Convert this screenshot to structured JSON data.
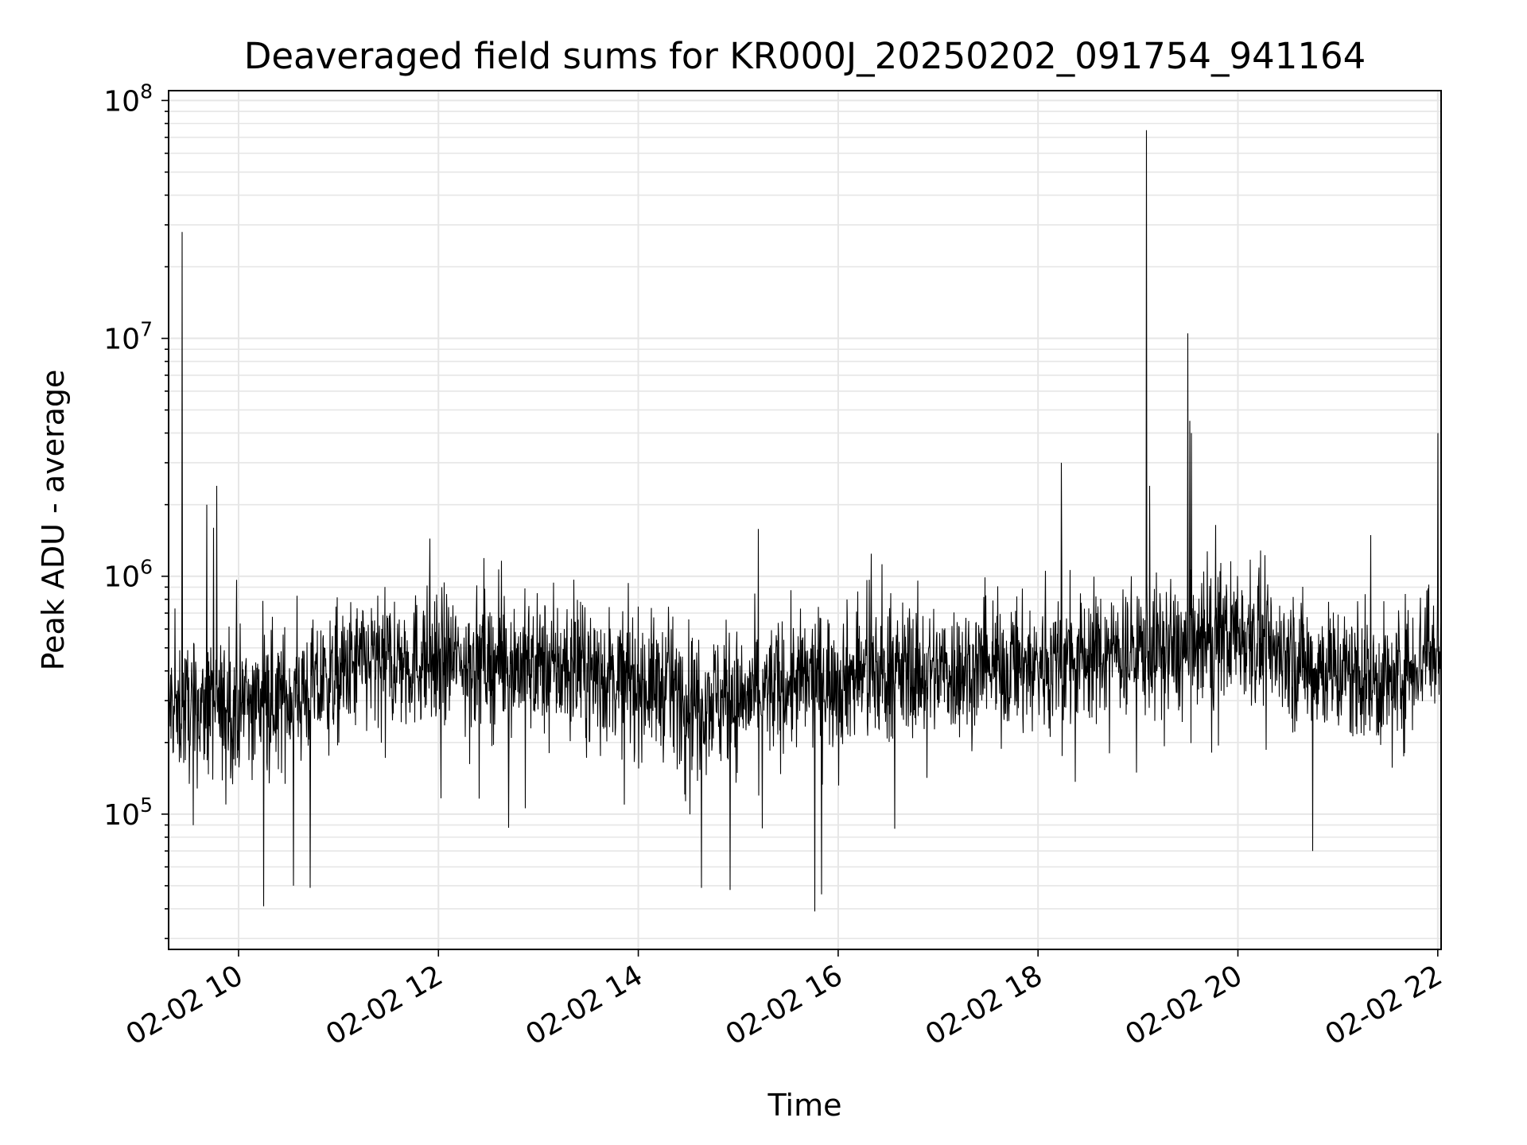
{
  "chart_data": {
    "type": "line",
    "title": "Deaveraged field sums for KR000J_20250202_091754_941164",
    "xlabel": "Time",
    "ylabel": "Peak ADU - average",
    "yscale": "log",
    "ylim": [
      27000,
      110000000
    ],
    "xlim": [
      "2025-02-02T09:18",
      "2025-02-02T22:02"
    ],
    "grid": true,
    "line_color": "#000000",
    "grid_color": "#e6e6e6",
    "x_ticks": [
      {
        "value": "2025-02-02T10:00",
        "label": "02-02 10"
      },
      {
        "value": "2025-02-02T12:00",
        "label": "02-02 12"
      },
      {
        "value": "2025-02-02T14:00",
        "label": "02-02 14"
      },
      {
        "value": "2025-02-02T16:00",
        "label": "02-02 16"
      },
      {
        "value": "2025-02-02T18:00",
        "label": "02-02 18"
      },
      {
        "value": "2025-02-02T20:00",
        "label": "02-02 20"
      },
      {
        "value": "2025-02-02T22:00",
        "label": "02-02 22"
      }
    ],
    "y_ticks": [
      {
        "value": 100000,
        "base": "10",
        "exp": "5"
      },
      {
        "value": 1000000,
        "base": "10",
        "exp": "6"
      },
      {
        "value": 10000000,
        "base": "10",
        "exp": "7"
      },
      {
        "value": 100000000,
        "base": "10",
        "exp": "8"
      }
    ],
    "baseline": [
      {
        "x": "2025-02-02T09:18",
        "y": 280000
      },
      {
        "x": "2025-02-02T09:45",
        "y": 270000
      },
      {
        "x": "2025-02-02T10:15",
        "y": 300000
      },
      {
        "x": "2025-02-02T10:45",
        "y": 330000
      },
      {
        "x": "2025-02-02T11:15",
        "y": 430000
      },
      {
        "x": "2025-02-02T12:00",
        "y": 450000
      },
      {
        "x": "2025-02-02T13:00",
        "y": 420000
      },
      {
        "x": "2025-02-02T14:00",
        "y": 360000
      },
      {
        "x": "2025-02-02T14:30",
        "y": 320000
      },
      {
        "x": "2025-02-02T15:00",
        "y": 300000
      },
      {
        "x": "2025-02-02T15:30",
        "y": 350000
      },
      {
        "x": "2025-02-02T16:00",
        "y": 380000
      },
      {
        "x": "2025-02-02T17:00",
        "y": 400000
      },
      {
        "x": "2025-02-02T18:00",
        "y": 420000
      },
      {
        "x": "2025-02-02T19:00",
        "y": 500000
      },
      {
        "x": "2025-02-02T19:30",
        "y": 480000
      },
      {
        "x": "2025-02-02T20:00",
        "y": 600000
      },
      {
        "x": "2025-02-02T20:30",
        "y": 450000
      },
      {
        "x": "2025-02-02T21:00",
        "y": 400000
      },
      {
        "x": "2025-02-02T21:30",
        "y": 350000
      },
      {
        "x": "2025-02-02T22:02",
        "y": 550000
      }
    ],
    "peaks": [
      {
        "x": "2025-02-02T09:26",
        "y": 28000000
      },
      {
        "x": "2025-02-02T09:41",
        "y": 2000000
      },
      {
        "x": "2025-02-02T09:45",
        "y": 1600000
      },
      {
        "x": "2025-02-02T09:47",
        "y": 2400000
      },
      {
        "x": "2025-02-02T18:14",
        "y": 3000000
      },
      {
        "x": "2025-02-02T19:05",
        "y": 75000000
      },
      {
        "x": "2025-02-02T19:07",
        "y": 2400000
      },
      {
        "x": "2025-02-02T19:30",
        "y": 10500000
      },
      {
        "x": "2025-02-02T19:31",
        "y": 4500000
      },
      {
        "x": "2025-02-02T19:32",
        "y": 4000000
      },
      {
        "x": "2025-02-02T22:00",
        "y": 4000000
      }
    ],
    "troughs": [
      {
        "x": "2025-02-02T10:15",
        "y": 41000
      },
      {
        "x": "2025-02-02T10:33",
        "y": 50000
      },
      {
        "x": "2025-02-02T10:43",
        "y": 49000
      },
      {
        "x": "2025-02-02T14:38",
        "y": 49000
      },
      {
        "x": "2025-02-02T14:55",
        "y": 48000
      },
      {
        "x": "2025-02-02T15:46",
        "y": 39000
      },
      {
        "x": "2025-02-02T15:50",
        "y": 46000
      },
      {
        "x": "2025-02-02T20:45",
        "y": 70000
      }
    ]
  }
}
